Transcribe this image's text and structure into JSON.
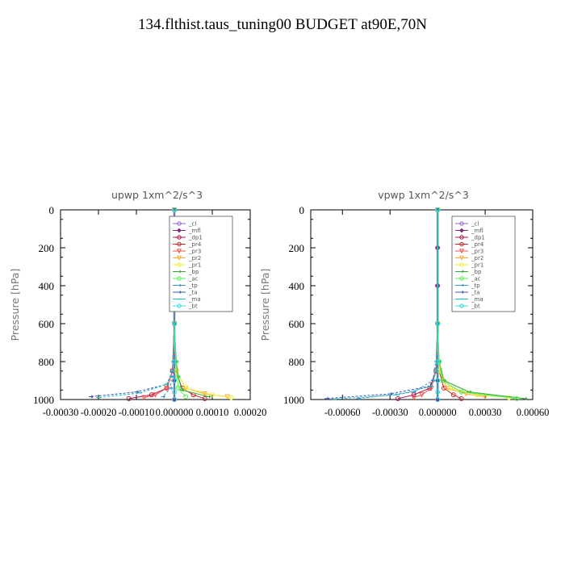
{
  "page_title": "134.flthist.taus_tuning00  BUDGET at90E,70N",
  "legend_labels": [
    "_cl",
    "_mfl",
    "_dp1",
    "_pr4",
    "_pr3",
    "_pr2",
    "_pr1",
    "_bp",
    "_ac",
    "_tp",
    "_ta",
    "_ma",
    "_bt"
  ],
  "legend_colors": [
    "#9966cc",
    "#7a2c7a",
    "#b01040",
    "#cc2020",
    "#ee5555",
    "#ffaa33",
    "#eeee33",
    "#33aa33",
    "#55ee55",
    "#3399cc",
    "#3355bb",
    "#22bbbb",
    "#33dddd"
  ],
  "legend_markers": [
    "circle",
    "diamond",
    "circle",
    "circle",
    "triangle",
    "triangle",
    "circle",
    "arrow",
    "circle",
    "arrow",
    "arrow",
    "dash",
    "circle"
  ],
  "chart_data": [
    {
      "type": "line",
      "title": "upwp   1xm^2/s^3",
      "ylabel": "Pressure [hPa]",
      "xlabel": "",
      "xlim": [
        -0.0003,
        0.0002
      ],
      "ylim": [
        1000,
        0
      ],
      "xticks": [
        -0.0003,
        -0.0002,
        -0.0001,
        0.0,
        0.0001,
        0.0002
      ],
      "xtick_labels": [
        "-0.00030",
        "-0.00020",
        "-0.00010",
        "0.000000",
        "0.00010",
        "0.00020"
      ],
      "yticks": [
        0,
        200,
        400,
        600,
        800,
        1000
      ],
      "ytick_labels": [
        "0",
        "200",
        "400",
        "600",
        "800",
        "1000"
      ],
      "legend": "top-right",
      "series": [
        {
          "name": "_cl",
          "x": [
            0,
            0,
            0,
            0,
            0,
            0,
            0
          ],
          "y": [
            0,
            200,
            400,
            600,
            800,
            900,
            1000
          ]
        },
        {
          "name": "_mfl",
          "x": [
            0,
            0,
            0,
            0,
            0,
            0,
            0
          ],
          "y": [
            0,
            200,
            400,
            600,
            800,
            900,
            1000
          ]
        },
        {
          "name": "_dp1",
          "x": [
            0,
            0,
            -5e-06,
            -2e-05,
            -6e-05,
            -0.00012
          ],
          "y": [
            0,
            600,
            850,
            940,
            975,
            995
          ]
        },
        {
          "name": "_pr4",
          "x": [
            0,
            0,
            5e-06,
            2e-05,
            5e-05,
            8e-05
          ],
          "y": [
            0,
            600,
            850,
            940,
            975,
            995
          ]
        },
        {
          "name": "_pr3",
          "x": [
            0,
            0,
            -5e-06,
            -2e-05,
            -5e-05,
            -8e-05
          ],
          "y": [
            0,
            600,
            850,
            940,
            975,
            990
          ]
        },
        {
          "name": "_pr2",
          "x": [
            0,
            0,
            5e-06,
            3e-05,
            8e-05,
            0.00014
          ],
          "y": [
            0,
            600,
            850,
            940,
            970,
            985
          ]
        },
        {
          "name": "_pr1",
          "x": [
            0,
            0,
            5e-06,
            3e-05,
            0.0001,
            0.00015
          ],
          "y": [
            0,
            600,
            850,
            940,
            975,
            990
          ]
        },
        {
          "name": "_bp",
          "x": [
            0,
            0,
            5e-06,
            1e-05,
            2e-05,
            9e-05
          ],
          "y": [
            0,
            600,
            800,
            880,
            950,
            985
          ]
        },
        {
          "name": "_ac",
          "x": [
            0,
            0,
            4e-06,
            8e-06,
            1e-05,
            3e-05
          ],
          "y": [
            0,
            600,
            800,
            880,
            940,
            985
          ]
        },
        {
          "name": "_tp",
          "x": [
            0,
            0,
            -4e-06,
            -8e-06,
            -1e-05,
            -3e-05
          ],
          "y": [
            0,
            600,
            800,
            880,
            940,
            985
          ]
        },
        {
          "name": "_ta",
          "x": [
            0,
            0,
            -5e-06,
            -2e-05,
            -0.0001,
            -0.00022
          ],
          "y": [
            0,
            600,
            850,
            920,
            960,
            985
          ]
        },
        {
          "name": "_ma",
          "x": [
            0,
            0,
            -5e-06,
            -2e-05,
            -9e-05,
            -0.0002
          ],
          "y": [
            0,
            600,
            850,
            920,
            965,
            990
          ]
        },
        {
          "name": "_bt",
          "x": [
            0,
            0,
            0,
            0,
            0,
            0
          ],
          "y": [
            0,
            600,
            800,
            900,
            960,
            1000
          ]
        }
      ]
    },
    {
      "type": "line",
      "title": "vpwp   1xm^2/s^3",
      "ylabel": "Pressure [hPa]",
      "xlabel": "",
      "xlim": [
        -0.0008,
        0.0006
      ],
      "ylim": [
        1000,
        0
      ],
      "xticks": [
        -0.0006,
        -0.0003,
        0.0,
        0.0003,
        0.0006
      ],
      "xtick_labels": [
        "-0.00060",
        "-0.00030",
        "0.000000",
        "0.00030",
        "0.00060"
      ],
      "yticks": [
        0,
        200,
        400,
        600,
        800,
        1000
      ],
      "ytick_labels": [
        "0",
        "200",
        "400",
        "600",
        "800",
        "1000"
      ],
      "legend": "top-right",
      "series": [
        {
          "name": "_cl",
          "x": [
            0,
            0,
            0,
            0,
            0,
            0,
            0
          ],
          "y": [
            0,
            200,
            400,
            600,
            800,
            900,
            1000
          ]
        },
        {
          "name": "_mfl",
          "x": [
            0,
            0,
            0,
            0,
            0,
            0,
            0
          ],
          "y": [
            0,
            200,
            400,
            600,
            800,
            900,
            1000
          ]
        },
        {
          "name": "_dp1",
          "x": [
            0,
            0,
            -1e-05,
            -5e-05,
            -0.00015,
            -0.00025
          ],
          "y": [
            0,
            600,
            850,
            940,
            975,
            995
          ]
        },
        {
          "name": "_pr4",
          "x": [
            0,
            0,
            1e-05,
            4e-05,
            0.0001,
            0.00015
          ],
          "y": [
            0,
            600,
            850,
            940,
            975,
            995
          ]
        },
        {
          "name": "_pr3",
          "x": [
            0,
            0,
            -1e-05,
            -4e-05,
            -0.0001,
            -0.00015
          ],
          "y": [
            0,
            600,
            850,
            940,
            975,
            990
          ]
        },
        {
          "name": "_pr2",
          "x": [
            0,
            0,
            1e-05,
            6e-05,
            0.00018,
            0.0003
          ],
          "y": [
            0,
            600,
            850,
            940,
            970,
            985
          ]
        },
        {
          "name": "_pr1",
          "x": [
            0,
            0,
            1e-05,
            8e-05,
            0.00025,
            0.00045
          ],
          "y": [
            0,
            600,
            850,
            940,
            975,
            990
          ]
        },
        {
          "name": "_bp",
          "x": [
            0,
            0,
            1e-05,
            4e-05,
            0.0002,
            0.00055
          ],
          "y": [
            0,
            600,
            800,
            900,
            960,
            995
          ]
        },
        {
          "name": "_ac",
          "x": [
            0,
            0,
            1e-05,
            3e-05,
            0.00015,
            0.0005
          ],
          "y": [
            0,
            600,
            800,
            900,
            960,
            995
          ]
        },
        {
          "name": "_tp",
          "x": [
            0,
            0,
            -1e-05,
            -3e-05,
            -0.00015,
            -0.0005
          ],
          "y": [
            0,
            600,
            800,
            900,
            960,
            995
          ]
        },
        {
          "name": "_ta",
          "x": [
            0,
            0,
            -1e-05,
            -5e-05,
            -0.0003,
            -0.0007
          ],
          "y": [
            0,
            600,
            850,
            930,
            970,
            995
          ]
        },
        {
          "name": "_ma",
          "x": [
            0,
            0,
            -1e-05,
            -4e-05,
            -0.00025,
            -0.00065
          ],
          "y": [
            0,
            600,
            850,
            930,
            975,
            998
          ]
        },
        {
          "name": "_bt",
          "x": [
            0,
            0,
            0,
            0,
            0,
            0
          ],
          "y": [
            0,
            600,
            800,
            900,
            960,
            1000
          ]
        }
      ]
    }
  ]
}
